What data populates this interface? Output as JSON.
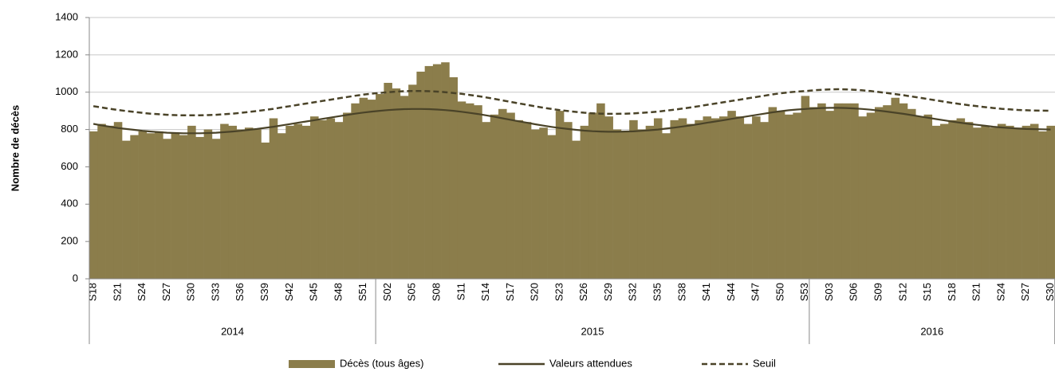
{
  "chart_data": {
    "type": "bar",
    "y_label": "Nombre de décès",
    "ylim": [
      0,
      1400
    ],
    "yticks": [
      0,
      200,
      400,
      600,
      800,
      1000,
      1200,
      1400
    ],
    "grid": true,
    "categories": [
      "S18",
      null,
      null,
      "S21",
      null,
      null,
      "S24",
      null,
      null,
      "S27",
      null,
      null,
      "S30",
      null,
      null,
      "S33",
      null,
      null,
      "S36",
      null,
      null,
      "S39",
      null,
      null,
      "S42",
      null,
      null,
      "S45",
      null,
      null,
      "S48",
      null,
      null,
      "S51",
      null,
      null,
      "S02",
      null,
      null,
      "S05",
      null,
      null,
      "S08",
      null,
      null,
      "S11",
      null,
      null,
      "S14",
      null,
      null,
      "S17",
      null,
      null,
      "S20",
      null,
      null,
      "S23",
      null,
      null,
      "S26",
      null,
      null,
      "S29",
      null,
      null,
      "S32",
      null,
      null,
      "S35",
      null,
      null,
      "S38",
      null,
      null,
      "S41",
      null,
      null,
      "S44",
      null,
      null,
      "S47",
      null,
      null,
      "S50",
      null,
      null,
      "S53",
      null,
      null,
      "S03",
      null,
      null,
      "S06",
      null,
      null,
      "S09",
      null,
      null,
      "S12",
      null,
      null,
      "S15",
      null,
      null,
      "S18",
      null,
      null,
      "S21",
      null,
      null,
      "S24",
      null,
      null,
      "S27",
      null,
      null,
      "S30"
    ],
    "x_groups": [
      {
        "label": "2014",
        "weeks": 35
      },
      {
        "label": "2015",
        "weeks": 53
      },
      {
        "label": "2016",
        "weeks": 30
      }
    ],
    "legend": "bottom",
    "series": [
      {
        "name": "Décès (tous âges)",
        "type": "bar",
        "color": "#8b7d4b",
        "values": [
          790,
          830,
          820,
          840,
          740,
          770,
          790,
          780,
          790,
          750,
          780,
          770,
          820,
          760,
          800,
          750,
          830,
          820,
          800,
          810,
          800,
          730,
          860,
          780,
          820,
          830,
          820,
          870,
          850,
          860,
          840,
          890,
          940,
          970,
          960,
          990,
          1050,
          1020,
          980,
          1040,
          1110,
          1140,
          1150,
          1160,
          1080,
          950,
          940,
          930,
          840,
          880,
          910,
          890,
          850,
          840,
          800,
          810,
          770,
          900,
          840,
          740,
          820,
          890,
          940,
          870,
          800,
          790,
          850,
          800,
          820,
          860,
          780,
          850,
          860,
          830,
          850,
          870,
          860,
          870,
          900,
          870,
          830,
          870,
          840,
          920,
          900,
          880,
          890,
          980,
          920,
          940,
          900,
          940,
          940,
          940,
          870,
          890,
          920,
          930,
          970,
          940,
          910,
          870,
          880,
          820,
          830,
          850,
          860,
          840,
          810,
          820,
          810,
          830,
          820,
          810,
          820,
          830,
          790,
          820
        ]
      },
      {
        "name": "Valeurs attendues",
        "type": "line",
        "color": "#4a4328",
        "dash": false,
        "values": [
          830,
          822,
          815,
          808,
          803,
          798,
          793,
          789,
          786,
          783,
          781,
          780,
          780,
          780,
          781,
          783,
          786,
          789,
          793,
          798,
          803,
          809,
          815,
          822,
          829,
          836,
          843,
          850,
          857,
          864,
          871,
          878,
          885,
          891,
          896,
          900,
          904,
          907,
          909,
          910,
          910,
          909,
          907,
          904,
          900,
          895,
          889,
          883,
          876,
          868,
          860,
          852,
          844,
          836,
          828,
          821,
          814,
          808,
          803,
          798,
          794,
          791,
          789,
          788,
          788,
          789,
          790,
          793,
          796,
          800,
          805,
          810,
          816,
          822,
          829,
          836,
          843,
          850,
          857,
          864,
          871,
          878,
          885,
          892,
          898,
          903,
          907,
          910,
          913,
          915,
          916,
          916,
          915,
          913,
          910,
          906,
          901,
          896,
          890,
          884,
          877,
          870,
          863,
          856,
          849,
          842,
          836,
          830,
          825,
          820,
          815,
          811,
          808,
          805,
          803,
          802,
          801,
          800
        ]
      },
      {
        "name": "Seuil",
        "type": "line",
        "color": "#4a4328",
        "dash": true,
        "values": [
          925,
          918,
          911,
          905,
          899,
          894,
          889,
          885,
          882,
          879,
          877,
          876,
          876,
          876,
          877,
          879,
          882,
          885,
          889,
          894,
          899,
          905,
          911,
          918,
          925,
          932,
          939,
          946,
          953,
          960,
          967,
          974,
          981,
          987,
          992,
          996,
          1000,
          1003,
          1005,
          1006,
          1006,
          1005,
          1003,
          1000,
          996,
          991,
          985,
          979,
          972,
          964,
          956,
          948,
          940,
          932,
          924,
          917,
          910,
          904,
          899,
          894,
          890,
          887,
          885,
          884,
          884,
          885,
          886,
          889,
          892,
          896,
          901,
          906,
          912,
          918,
          925,
          932,
          939,
          946,
          953,
          960,
          967,
          974,
          981,
          988,
          994,
          999,
          1003,
          1006,
          1010,
          1013,
          1015,
          1016,
          1015,
          1013,
          1010,
          1006,
          1001,
          996,
          990,
          984,
          977,
          970,
          963,
          956,
          949,
          942,
          936,
          930,
          925,
          920,
          915,
          911,
          908,
          905,
          903,
          902,
          901,
          900
        ]
      }
    ]
  }
}
